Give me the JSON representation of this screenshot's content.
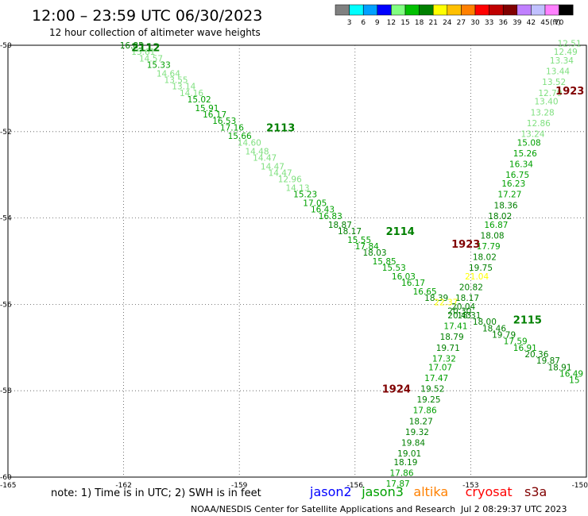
{
  "header": {
    "title": "12:00 – 23:59 UTC 06/30/2023",
    "subtitle": "12 hour collection of altimeter wave heights"
  },
  "legend": {
    "unit": "(ft)",
    "bins": [
      {
        "label": "3",
        "color": "#808080"
      },
      {
        "label": "6",
        "color": "#00ffff"
      },
      {
        "label": "9",
        "color": "#00a0ff"
      },
      {
        "label": "12",
        "color": "#0000ff"
      },
      {
        "label": "15",
        "color": "#80ff80"
      },
      {
        "label": "18",
        "color": "#00c000"
      },
      {
        "label": "21",
        "color": "#008000"
      },
      {
        "label": "24",
        "color": "#ffff00"
      },
      {
        "label": "27",
        "color": "#ffc000"
      },
      {
        "label": "30",
        "color": "#ff8000"
      },
      {
        "label": "33",
        "color": "#ff0000"
      },
      {
        "label": "36",
        "color": "#c00000"
      },
      {
        "label": "39",
        "color": "#800000"
      },
      {
        "label": "42",
        "color": "#c080ff"
      },
      {
        "label": "45",
        "color": "#c0c0ff"
      },
      {
        "label": "70",
        "color": "#ff80ff"
      },
      {
        "label": "",
        "color": "#000000"
      }
    ]
  },
  "map": {
    "lon_range": [
      -165,
      -150
    ],
    "lat_range": [
      -60,
      -50
    ],
    "lon_ticks": [
      "-165",
      "-162",
      "-159",
      "-156",
      "-153",
      "-150"
    ],
    "lat_ticks": [
      "-50",
      "-52",
      "-54",
      "-56",
      "-58",
      "-60"
    ]
  },
  "tracks": [
    {
      "times": [
        {
          "text": "2112",
          "lon": -161.8,
          "lat": -50.05,
          "color": "#008000"
        },
        {
          "text": "2113",
          "lon": -158.3,
          "lat": -51.9,
          "color": "#008000"
        },
        {
          "text": "2114",
          "lon": -155.2,
          "lat": -54.3,
          "color": "#008000"
        },
        {
          "text": "2115",
          "lon": -151.9,
          "lat": -56.35,
          "color": "#008000"
        }
      ],
      "points": [
        {
          "v": "16.85",
          "lon": -162.1,
          "lat": -50.0,
          "color": "#008000"
        },
        {
          "v": "15.61",
          "lon": -161.8,
          "lat": -50.15,
          "color": "#80e080"
        },
        {
          "v": "14.57",
          "lon": -161.6,
          "lat": -50.3,
          "color": "#80e080"
        },
        {
          "v": "15.33",
          "lon": -161.4,
          "lat": -50.45,
          "color": "#00a000"
        },
        {
          "v": "14.64",
          "lon": -161.15,
          "lat": -50.65,
          "color": "#80e080"
        },
        {
          "v": "13.55",
          "lon": -160.95,
          "lat": -50.8,
          "color": "#80e080"
        },
        {
          "v": "13.14",
          "lon": -160.75,
          "lat": -50.95,
          "color": "#80e080"
        },
        {
          "v": "14.16",
          "lon": -160.55,
          "lat": -51.1,
          "color": "#80e080"
        },
        {
          "v": "15.02",
          "lon": -160.35,
          "lat": -51.25,
          "color": "#00a000"
        },
        {
          "v": "15.91",
          "lon": -160.15,
          "lat": -51.45,
          "color": "#00a000"
        },
        {
          "v": "16.17",
          "lon": -159.95,
          "lat": -51.6,
          "color": "#00a000"
        },
        {
          "v": "16.53",
          "lon": -159.7,
          "lat": -51.75,
          "color": "#00a000"
        },
        {
          "v": "17.16",
          "lon": -159.5,
          "lat": -51.9,
          "color": "#00a000"
        },
        {
          "v": "15.66",
          "lon": -159.3,
          "lat": -52.1,
          "color": "#00a000"
        },
        {
          "v": "14.60",
          "lon": -159.05,
          "lat": -52.25,
          "color": "#80e080"
        },
        {
          "v": "14.48",
          "lon": -158.85,
          "lat": -52.45,
          "color": "#80e080"
        },
        {
          "v": "14.47",
          "lon": -158.65,
          "lat": -52.6,
          "color": "#80e080"
        },
        {
          "v": "14.47",
          "lon": -158.45,
          "lat": -52.8,
          "color": "#80e080"
        },
        {
          "v": "14.47",
          "lon": -158.25,
          "lat": -52.95,
          "color": "#80e080"
        },
        {
          "v": "12.96",
          "lon": -158.0,
          "lat": -53.1,
          "color": "#80e080"
        },
        {
          "v": "14.13",
          "lon": -157.8,
          "lat": -53.3,
          "color": "#80e080"
        },
        {
          "v": "15.23",
          "lon": -157.6,
          "lat": -53.45,
          "color": "#00a000"
        },
        {
          "v": "17.05",
          "lon": -157.35,
          "lat": -53.65,
          "color": "#00a000"
        },
        {
          "v": "16.43",
          "lon": -157.15,
          "lat": -53.8,
          "color": "#00a000"
        },
        {
          "v": "16.83",
          "lon": -156.95,
          "lat": -53.95,
          "color": "#00a000"
        },
        {
          "v": "18.87",
          "lon": -156.7,
          "lat": -54.15,
          "color": "#008000"
        },
        {
          "v": "18.17",
          "lon": -156.45,
          "lat": -54.3,
          "color": "#008000"
        },
        {
          "v": "15.55",
          "lon": -156.2,
          "lat": -54.5,
          "color": "#00a000"
        },
        {
          "v": "17.84",
          "lon": -156.0,
          "lat": -54.65,
          "color": "#00a000"
        },
        {
          "v": "18.03",
          "lon": -155.8,
          "lat": -54.8,
          "color": "#008000"
        },
        {
          "v": "15.85",
          "lon": -155.55,
          "lat": -55.0,
          "color": "#00a000"
        },
        {
          "v": "15.53",
          "lon": -155.3,
          "lat": -55.15,
          "color": "#00a000"
        },
        {
          "v": "16.03",
          "lon": -155.05,
          "lat": -55.35,
          "color": "#00a000"
        },
        {
          "v": "16.17",
          "lon": -154.8,
          "lat": -55.5,
          "color": "#00a000"
        },
        {
          "v": "16.65",
          "lon": -154.5,
          "lat": -55.7,
          "color": "#00a000"
        },
        {
          "v": "18.39",
          "lon": -154.2,
          "lat": -55.85,
          "color": "#008000"
        },
        {
          "v": "22.37",
          "lon": -153.95,
          "lat": -55.95,
          "color": "#ffff00"
        },
        {
          "v": "20.30",
          "lon": -153.6,
          "lat": -56.15,
          "color": "#008000"
        },
        {
          "v": "18.31",
          "lon": -153.35,
          "lat": -56.25,
          "color": "#008000"
        },
        {
          "v": "18.00",
          "lon": -152.95,
          "lat": -56.4,
          "color": "#008000"
        },
        {
          "v": "18.46",
          "lon": -152.7,
          "lat": -56.55,
          "color": "#008000"
        },
        {
          "v": "19.79",
          "lon": -152.45,
          "lat": -56.7,
          "color": "#008000"
        },
        {
          "v": "17.59",
          "lon": -152.15,
          "lat": -56.85,
          "color": "#00a000"
        },
        {
          "v": "16.91",
          "lon": -151.9,
          "lat": -57.0,
          "color": "#00a000"
        },
        {
          "v": "20.36",
          "lon": -151.6,
          "lat": -57.15,
          "color": "#008000"
        },
        {
          "v": "19.87",
          "lon": -151.3,
          "lat": -57.3,
          "color": "#008000"
        },
        {
          "v": "18.91",
          "lon": -151.0,
          "lat": -57.45,
          "color": "#008000"
        },
        {
          "v": "16.49",
          "lon": -150.7,
          "lat": -57.6,
          "color": "#00a000"
        },
        {
          "v": "15",
          "lon": -150.45,
          "lat": -57.75,
          "color": "#00a000"
        }
      ]
    },
    {
      "times": [
        {
          "text": "1923",
          "lon": -150.8,
          "lat": -51.05,
          "color": "#800000"
        },
        {
          "text": "1923",
          "lon": -153.5,
          "lat": -54.6,
          "color": "#800000"
        },
        {
          "text": "1924",
          "lon": -155.3,
          "lat": -57.95,
          "color": "#800000"
        }
      ],
      "points": [
        {
          "v": "12.51",
          "lon": -150.75,
          "lat": -49.95,
          "color": "#80e080"
        },
        {
          "v": "12.49",
          "lon": -150.85,
          "lat": -50.15,
          "color": "#80e080"
        },
        {
          "v": "13.34",
          "lon": -150.95,
          "lat": -50.35,
          "color": "#80e080"
        },
        {
          "v": "13.44",
          "lon": -151.05,
          "lat": -50.6,
          "color": "#80e080"
        },
        {
          "v": "13.52",
          "lon": -151.15,
          "lat": -50.85,
          "color": "#80e080"
        },
        {
          "v": "12.79",
          "lon": -151.25,
          "lat": -51.1,
          "color": "#80e080"
        },
        {
          "v": "13.40",
          "lon": -151.35,
          "lat": -51.3,
          "color": "#80e080"
        },
        {
          "v": "13.28",
          "lon": -151.45,
          "lat": -51.55,
          "color": "#80e080"
        },
        {
          "v": "12.86",
          "lon": -151.55,
          "lat": -51.8,
          "color": "#80e080"
        },
        {
          "v": "13.24",
          "lon": -151.7,
          "lat": -52.05,
          "color": "#80e080"
        },
        {
          "v": "15.08",
          "lon": -151.8,
          "lat": -52.25,
          "color": "#00a000"
        },
        {
          "v": "15.26",
          "lon": -151.9,
          "lat": -52.5,
          "color": "#00a000"
        },
        {
          "v": "16.34",
          "lon": -152.0,
          "lat": -52.75,
          "color": "#00a000"
        },
        {
          "v": "16.75",
          "lon": -152.1,
          "lat": -53.0,
          "color": "#00a000"
        },
        {
          "v": "16.23",
          "lon": -152.2,
          "lat": -53.2,
          "color": "#00a000"
        },
        {
          "v": "17.27",
          "lon": -152.3,
          "lat": -53.45,
          "color": "#00a000"
        },
        {
          "v": "18.36",
          "lon": -152.4,
          "lat": -53.7,
          "color": "#008000"
        },
        {
          "v": "18.02",
          "lon": -152.55,
          "lat": -53.95,
          "color": "#008000"
        },
        {
          "v": "16.87",
          "lon": -152.65,
          "lat": -54.15,
          "color": "#00a000"
        },
        {
          "v": "18.08",
          "lon": -152.75,
          "lat": -54.4,
          "color": "#008000"
        },
        {
          "v": "17.79",
          "lon": -152.85,
          "lat": -54.65,
          "color": "#00a000"
        },
        {
          "v": "18.02",
          "lon": -152.95,
          "lat": -54.9,
          "color": "#008000"
        },
        {
          "v": "19.75",
          "lon": -153.05,
          "lat": -55.15,
          "color": "#008000"
        },
        {
          "v": "21.04",
          "lon": -153.15,
          "lat": -55.35,
          "color": "#ffff00"
        },
        {
          "v": "20.82",
          "lon": -153.3,
          "lat": -55.6,
          "color": "#008000"
        },
        {
          "v": "18.17",
          "lon": -153.4,
          "lat": -55.85,
          "color": "#008000"
        },
        {
          "v": "20.04",
          "lon": -153.5,
          "lat": -56.05,
          "color": "#008000"
        },
        {
          "v": "20.43",
          "lon": -153.6,
          "lat": -56.25,
          "color": "#008000"
        },
        {
          "v": "17.41",
          "lon": -153.7,
          "lat": -56.5,
          "color": "#00a000"
        },
        {
          "v": "18.79",
          "lon": -153.8,
          "lat": -56.75,
          "color": "#008000"
        },
        {
          "v": "19.71",
          "lon": -153.9,
          "lat": -57.0,
          "color": "#008000"
        },
        {
          "v": "17.32",
          "lon": -154.0,
          "lat": -57.25,
          "color": "#00a000"
        },
        {
          "v": "17.07",
          "lon": -154.1,
          "lat": -57.45,
          "color": "#00a000"
        },
        {
          "v": "17.47",
          "lon": -154.2,
          "lat": -57.7,
          "color": "#00a000"
        },
        {
          "v": "19.52",
          "lon": -154.3,
          "lat": -57.95,
          "color": "#008000"
        },
        {
          "v": "19.25",
          "lon": -154.4,
          "lat": -58.2,
          "color": "#008000"
        },
        {
          "v": "17.86",
          "lon": -154.5,
          "lat": -58.45,
          "color": "#00a000"
        },
        {
          "v": "18.27",
          "lon": -154.6,
          "lat": -58.7,
          "color": "#008000"
        },
        {
          "v": "19.32",
          "lon": -154.7,
          "lat": -58.95,
          "color": "#008000"
        },
        {
          "v": "19.84",
          "lon": -154.8,
          "lat": -59.2,
          "color": "#008000"
        },
        {
          "v": "19.01",
          "lon": -154.9,
          "lat": -59.45,
          "color": "#008000"
        },
        {
          "v": "18.19",
          "lon": -155.0,
          "lat": -59.65,
          "color": "#008000"
        },
        {
          "v": "17.86",
          "lon": -155.1,
          "lat": -59.9,
          "color": "#00a000"
        },
        {
          "v": "17.87",
          "lon": -155.2,
          "lat": -60.15,
          "color": "#00a000"
        }
      ]
    }
  ],
  "footer": {
    "note": "note: 1) Time is in UTC; 2) SWH is in feet",
    "missions": [
      {
        "text": "jason2",
        "color": "#0000ff"
      },
      {
        "text": "jason3",
        "color": "#00a000"
      },
      {
        "text": "altika",
        "color": "#ff8000"
      },
      {
        "text": "cryosat",
        "color": "#ff0000"
      },
      {
        "text": "s3a",
        "color": "#800000"
      }
    ],
    "credit": "NOAA/NESDIS Center for Satellite Applications and Research",
    "timestamp": "Jul  2 08:29:37 UTC 2023"
  }
}
